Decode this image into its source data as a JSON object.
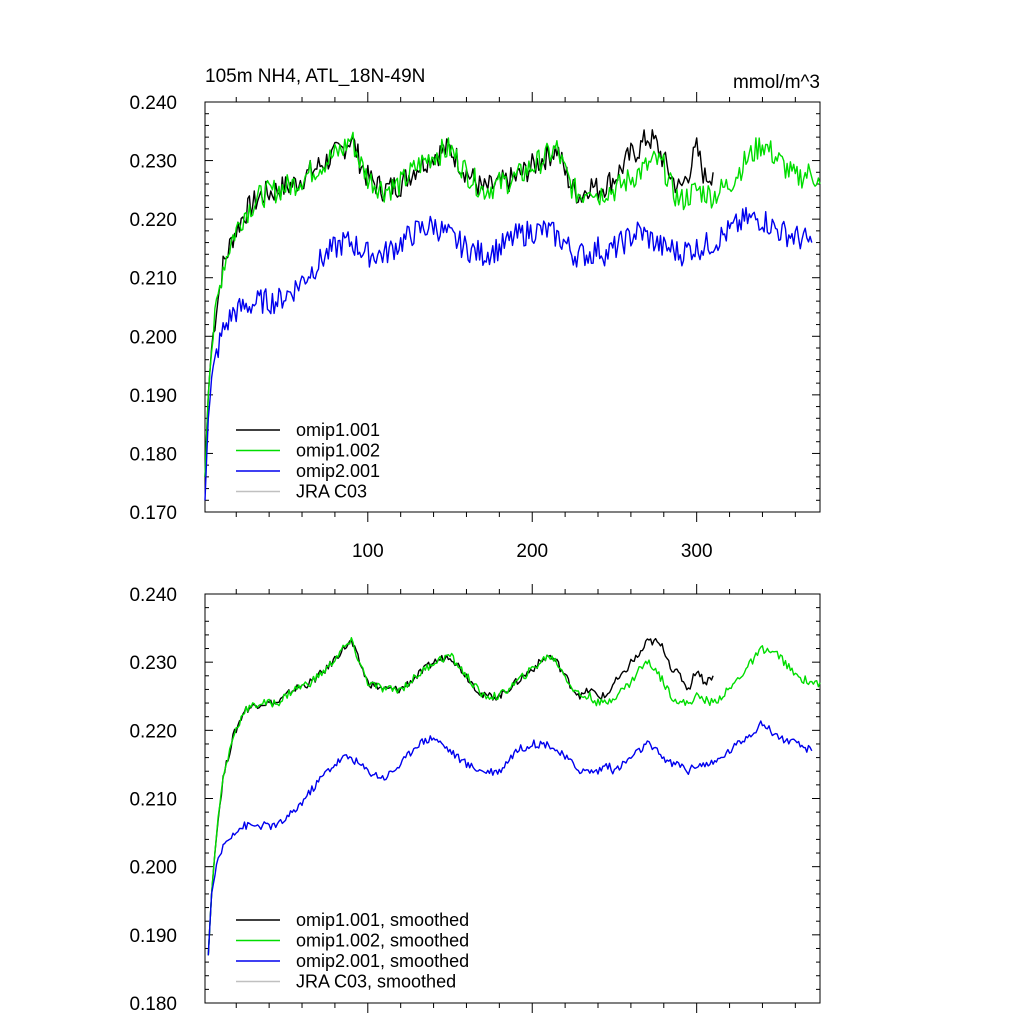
{
  "chart_data": [
    {
      "type": "line",
      "title": "105m NH4, ATL_18N-49N",
      "units": "mmol/m^3",
      "xlabel": "",
      "ylabel": "",
      "xlim": [
        1,
        375
      ],
      "ylim": [
        0.17,
        0.24
      ],
      "yticks": [
        "0.170",
        "0.180",
        "0.190",
        "0.200",
        "0.210",
        "0.220",
        "0.230",
        "0.240"
      ],
      "xticks": [
        "100",
        "200",
        "300"
      ],
      "legend_placement": "bottom-left",
      "series": [
        {
          "name": "omip1.001",
          "color": "#000000",
          "x": [
            1,
            3,
            5,
            8,
            12,
            18,
            25,
            35,
            45,
            55,
            65,
            75,
            85,
            90,
            95,
            100,
            110,
            120,
            130,
            140,
            150,
            160,
            170,
            180,
            190,
            200,
            210,
            215,
            220,
            225,
            230,
            235,
            240,
            245,
            250,
            255,
            260,
            265,
            270,
            275,
            280,
            285,
            290,
            295,
            300,
            305,
            310
          ],
          "y": [
            0.176,
            0.19,
            0.198,
            0.205,
            0.212,
            0.217,
            0.221,
            0.224,
            0.225,
            0.226,
            0.228,
            0.23,
            0.232,
            0.234,
            0.23,
            0.227,
            0.225,
            0.226,
            0.229,
            0.231,
            0.232,
            0.228,
            0.225,
            0.226,
            0.227,
            0.229,
            0.231,
            0.232,
            0.228,
            0.225,
            0.224,
            0.226,
            0.225,
            0.226,
            0.227,
            0.229,
            0.231,
            0.232,
            0.234,
            0.233,
            0.23,
            0.227,
            0.225,
            0.228,
            0.232,
            0.227,
            0.228
          ]
        },
        {
          "name": "omip1.002",
          "color": "#00dd00",
          "x": [
            1,
            3,
            5,
            8,
            12,
            18,
            25,
            35,
            45,
            55,
            65,
            75,
            85,
            90,
            95,
            100,
            110,
            120,
            130,
            140,
            150,
            160,
            170,
            180,
            190,
            200,
            210,
            215,
            220,
            225,
            230,
            235,
            240,
            245,
            250,
            255,
            260,
            265,
            270,
            275,
            280,
            285,
            290,
            295,
            300,
            310,
            320,
            330,
            340,
            350,
            360,
            370,
            375
          ],
          "y": [
            0.176,
            0.19,
            0.198,
            0.205,
            0.212,
            0.217,
            0.221,
            0.224,
            0.225,
            0.226,
            0.228,
            0.23,
            0.232,
            0.234,
            0.23,
            0.227,
            0.225,
            0.226,
            0.229,
            0.231,
            0.232,
            0.228,
            0.225,
            0.226,
            0.227,
            0.229,
            0.231,
            0.232,
            0.228,
            0.225,
            0.224,
            0.226,
            0.224,
            0.225,
            0.225,
            0.226,
            0.227,
            0.228,
            0.229,
            0.23,
            0.229,
            0.225,
            0.223,
            0.224,
            0.225,
            0.224,
            0.226,
            0.23,
            0.233,
            0.23,
            0.227,
            0.228,
            0.226
          ]
        },
        {
          "name": "omip2.001",
          "color": "#0000ee",
          "x": [
            1,
            3,
            5,
            8,
            12,
            18,
            25,
            35,
            45,
            55,
            65,
            75,
            85,
            90,
            95,
            100,
            110,
            120,
            130,
            140,
            150,
            160,
            170,
            180,
            190,
            200,
            210,
            215,
            220,
            225,
            230,
            235,
            240,
            245,
            250,
            255,
            260,
            265,
            270,
            275,
            280,
            285,
            290,
            295,
            300,
            310,
            320,
            330,
            340,
            350,
            360,
            370
          ],
          "y": [
            0.172,
            0.186,
            0.192,
            0.197,
            0.201,
            0.204,
            0.205,
            0.206,
            0.206,
            0.208,
            0.211,
            0.214,
            0.216,
            0.216,
            0.215,
            0.214,
            0.214,
            0.216,
            0.218,
            0.219,
            0.217,
            0.215,
            0.214,
            0.215,
            0.217,
            0.218,
            0.218,
            0.217,
            0.216,
            0.214,
            0.214,
            0.214,
            0.215,
            0.214,
            0.215,
            0.216,
            0.217,
            0.218,
            0.217,
            0.216,
            0.215,
            0.215,
            0.214,
            0.215,
            0.215,
            0.216,
            0.218,
            0.22,
            0.22,
            0.218,
            0.217,
            0.216
          ]
        },
        {
          "name": "JRA C03",
          "color": "#c0c0c0",
          "x": [],
          "y": []
        }
      ]
    },
    {
      "type": "line",
      "title": "",
      "units": "",
      "xlabel": "",
      "ylabel": "",
      "xlim": [
        1,
        375
      ],
      "ylim": [
        0.18,
        0.24
      ],
      "yticks": [
        "0.180",
        "0.190",
        "0.200",
        "0.210",
        "0.220",
        "0.230",
        "0.240"
      ],
      "xticks": [],
      "legend_placement": "bottom-left",
      "series": [
        {
          "name": "omip1.001, smoothed",
          "color": "#000000",
          "x": [
            3,
            5,
            8,
            12,
            18,
            25,
            35,
            45,
            55,
            65,
            75,
            85,
            90,
            95,
            100,
            110,
            120,
            130,
            140,
            150,
            160,
            170,
            180,
            190,
            200,
            210,
            215,
            220,
            225,
            230,
            235,
            240,
            245,
            250,
            255,
            260,
            265,
            270,
            275,
            280,
            285,
            290,
            295,
            300,
            305,
            310
          ],
          "y": [
            0.187,
            0.196,
            0.205,
            0.213,
            0.219,
            0.223,
            0.224,
            0.224,
            0.226,
            0.227,
            0.229,
            0.232,
            0.233,
            0.23,
            0.227,
            0.226,
            0.226,
            0.228,
            0.23,
            0.231,
            0.228,
            0.225,
            0.225,
            0.227,
            0.229,
            0.231,
            0.23,
            0.228,
            0.226,
            0.225,
            0.226,
            0.225,
            0.225,
            0.227,
            0.228,
            0.23,
            0.231,
            0.233,
            0.233,
            0.232,
            0.229,
            0.228,
            0.226,
            0.229,
            0.227,
            0.228
          ]
        },
        {
          "name": "omip1.002, smoothed",
          "color": "#00dd00",
          "x": [
            3,
            5,
            8,
            12,
            18,
            25,
            35,
            45,
            55,
            65,
            75,
            85,
            90,
            95,
            100,
            110,
            120,
            130,
            140,
            150,
            160,
            170,
            180,
            190,
            200,
            210,
            215,
            220,
            225,
            230,
            235,
            240,
            245,
            250,
            255,
            260,
            265,
            270,
            275,
            280,
            285,
            290,
            295,
            300,
            310,
            320,
            330,
            340,
            350,
            360,
            370,
            375
          ],
          "y": [
            0.187,
            0.196,
            0.205,
            0.213,
            0.219,
            0.223,
            0.224,
            0.224,
            0.226,
            0.227,
            0.229,
            0.232,
            0.233,
            0.23,
            0.227,
            0.226,
            0.226,
            0.228,
            0.23,
            0.231,
            0.228,
            0.225,
            0.225,
            0.227,
            0.229,
            0.231,
            0.23,
            0.228,
            0.226,
            0.225,
            0.225,
            0.224,
            0.224,
            0.225,
            0.226,
            0.227,
            0.229,
            0.23,
            0.229,
            0.227,
            0.225,
            0.224,
            0.224,
            0.225,
            0.224,
            0.226,
            0.229,
            0.232,
            0.231,
            0.228,
            0.227,
            0.227
          ]
        },
        {
          "name": "omip2.001, smoothed",
          "color": "#0000ee",
          "x": [
            3,
            5,
            8,
            12,
            18,
            25,
            35,
            45,
            55,
            65,
            75,
            85,
            90,
            95,
            100,
            110,
            120,
            130,
            140,
            150,
            160,
            170,
            180,
            190,
            200,
            210,
            215,
            220,
            225,
            230,
            235,
            240,
            245,
            250,
            255,
            260,
            265,
            270,
            275,
            280,
            285,
            290,
            295,
            300,
            310,
            320,
            330,
            340,
            350,
            360,
            370
          ],
          "y": [
            0.187,
            0.196,
            0.2,
            0.203,
            0.205,
            0.206,
            0.206,
            0.206,
            0.208,
            0.211,
            0.214,
            0.216,
            0.216,
            0.215,
            0.214,
            0.213,
            0.215,
            0.218,
            0.219,
            0.217,
            0.215,
            0.214,
            0.214,
            0.217,
            0.218,
            0.218,
            0.217,
            0.216,
            0.215,
            0.214,
            0.214,
            0.214,
            0.215,
            0.214,
            0.215,
            0.216,
            0.217,
            0.218,
            0.217,
            0.216,
            0.215,
            0.215,
            0.214,
            0.215,
            0.215,
            0.217,
            0.219,
            0.221,
            0.219,
            0.218,
            0.217
          ]
        },
        {
          "name": "JRA C03, smoothed",
          "color": "#c0c0c0",
          "x": [],
          "y": []
        }
      ]
    }
  ]
}
